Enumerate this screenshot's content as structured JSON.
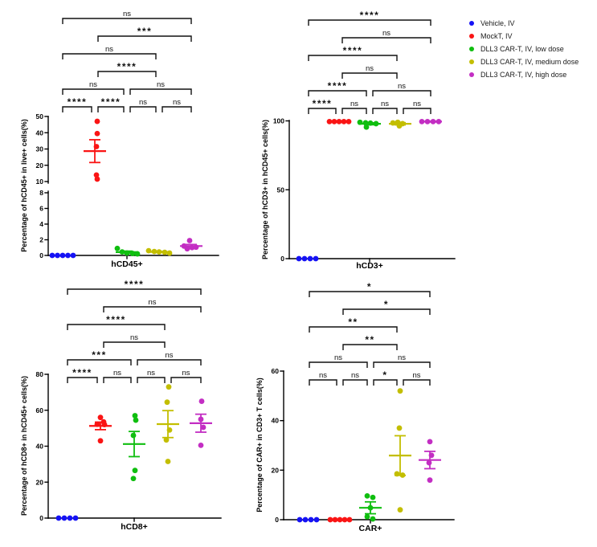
{
  "figure": {
    "background": "#ffffff",
    "legend_position": "top-right-outside"
  },
  "legend": {
    "items": [
      {
        "label": "Vehicle, IV",
        "color": "#1512F5"
      },
      {
        "label": "MockT, IV",
        "color": "#FA1414"
      },
      {
        "label": "DLL3 CAR-T, IV, low dose",
        "color": "#0FBE0F"
      },
      {
        "label": "DLL3 CAR-T, IV, medium dose",
        "color": "#C3BE00"
      },
      {
        "label": "DLL3 CAR-T, IV, high dose",
        "color": "#C32EC3"
      }
    ]
  },
  "chart_data": [
    {
      "id": "hCD45",
      "type": "scatter",
      "ylabel": "Percentage of hCD45+ in live+ cells(%)",
      "category": "hCD45+",
      "y_axis": {
        "broken": true,
        "segments": [
          {
            "range": [
              0,
              8
            ],
            "ticks": [
              0,
              2,
              4,
              6,
              8
            ]
          },
          {
            "range": [
              10,
              50
            ],
            "ticks": [
              10,
              20,
              30,
              40,
              50
            ]
          }
        ]
      },
      "series": [
        {
          "name": "Vehicle, IV",
          "values": [
            0,
            0,
            0,
            0,
            0
          ],
          "jitter": [
            -13,
            -6.5,
            0,
            6.5,
            13
          ],
          "mean": null,
          "sem_low": null,
          "sem_high": null
        },
        {
          "name": "MockT, IV",
          "values": [
            47,
            39.5,
            31.5,
            14,
            11.5
          ],
          "jitter": [
            3,
            3,
            2,
            2,
            3
          ],
          "mean": 28.7,
          "sem_low": 21.7,
          "sem_high": 35.7
        },
        {
          "name": "DLL3 CAR-T, IV, low dose",
          "values": [
            0.9,
            0.45,
            0.3,
            0.25,
            0.2
          ],
          "jitter": [
            -12,
            -6,
            0,
            7,
            13
          ],
          "mean": 0.42,
          "sem_low": 0.29,
          "sem_high": 0.55
        },
        {
          "name": "DLL3 CAR-T, IV, medium dose",
          "values": [
            0.6,
            0.5,
            0.45,
            0.4,
            0.3
          ],
          "jitter": [
            -13,
            -6,
            0,
            7,
            13
          ],
          "mean": 0.45,
          "sem_low": 0.38,
          "sem_high": 0.52
        },
        {
          "name": "DLL3 CAR-T, IV, high dose",
          "values": [
            1.9,
            1.2,
            1.05,
            1.0,
            0.85
          ],
          "jitter": [
            -2,
            -9,
            6,
            1,
            -5
          ],
          "mean": 1.2,
          "sem_low": 1.0,
          "sem_high": 1.4
        }
      ],
      "significance": [
        {
          "row": 1,
          "from": 1,
          "to": 2,
          "label": "****"
        },
        {
          "row": 1,
          "from": 2,
          "to": 3,
          "label": "****"
        },
        {
          "row": 1,
          "from": 3,
          "to": 4,
          "label": "ns"
        },
        {
          "row": 1,
          "from": 4,
          "to": 5,
          "label": "ns"
        },
        {
          "row": 2,
          "from": 1,
          "to": 3,
          "label": "ns"
        },
        {
          "row": 2,
          "from": 3,
          "to": 5,
          "label": "ns"
        },
        {
          "row": 3,
          "from": 2,
          "to": 4,
          "label": "****"
        },
        {
          "row": 4,
          "from": 1,
          "to": 4,
          "label": "ns"
        },
        {
          "row": 5,
          "from": 2,
          "to": 5,
          "label": "***"
        },
        {
          "row": 6,
          "from": 1,
          "to": 5,
          "label": "ns"
        }
      ]
    },
    {
      "id": "hCD3",
      "type": "scatter",
      "ylabel": "Percentage of hCD3+ in hCD45+ cells(%)",
      "category": "hCD3+",
      "y_axis": {
        "broken": false,
        "segments": [
          {
            "range": [
              0,
              100
            ],
            "ticks": [
              0,
              50,
              100
            ]
          }
        ]
      },
      "series": [
        {
          "name": "Vehicle, IV",
          "values": [
            0,
            0,
            0,
            0
          ],
          "jitter": [
            -12,
            -5,
            2,
            9
          ],
          "mean": null,
          "sem_low": null,
          "sem_high": null
        },
        {
          "name": "MockT, IV",
          "values": [
            99.5,
            99.5,
            99.5,
            99.5,
            99.5
          ],
          "jitter": [
            -12,
            -6,
            0,
            6,
            12
          ],
          "mean": 99.5,
          "sem_low": 99.1,
          "sem_high": 99.9
        },
        {
          "name": "DLL3 CAR-T, IV, low dose",
          "values": [
            99,
            98.6,
            98.4,
            98,
            95.5
          ],
          "jitter": [
            -12,
            -5,
            1,
            8,
            -4
          ],
          "mean": 97.9,
          "sem_low": 97.2,
          "sem_high": 98.6
        },
        {
          "name": "DLL3 CAR-T, IV, medium dose",
          "values": [
            99,
            98.5,
            98,
            97.6,
            96.4
          ],
          "jitter": [
            -3,
            -9,
            3,
            0,
            -1
          ],
          "mean": 97.9,
          "sem_low": 97.1,
          "sem_high": 98.7
        },
        {
          "name": "DLL3 CAR-T, IV, high dose",
          "values": [
            99.5,
            99.5,
            99.5,
            99.5
          ],
          "jitter": [
            -11,
            -4,
            3,
            10
          ],
          "mean": 99.5,
          "sem_low": 99.2,
          "sem_high": 99.8
        }
      ],
      "significance": [
        {
          "row": 1,
          "from": 1,
          "to": 2,
          "label": "****"
        },
        {
          "row": 1,
          "from": 2,
          "to": 3,
          "label": "ns"
        },
        {
          "row": 1,
          "from": 3,
          "to": 4,
          "label": "ns"
        },
        {
          "row": 1,
          "from": 4,
          "to": 5,
          "label": "ns"
        },
        {
          "row": 2,
          "from": 1,
          "to": 3,
          "label": "****"
        },
        {
          "row": 2,
          "from": 3,
          "to": 5,
          "label": "ns"
        },
        {
          "row": 3,
          "from": 2,
          "to": 4,
          "label": "ns"
        },
        {
          "row": 4,
          "from": 1,
          "to": 4,
          "label": "****"
        },
        {
          "row": 5,
          "from": 2,
          "to": 5,
          "label": "ns"
        },
        {
          "row": 6,
          "from": 1,
          "to": 5,
          "label": "****"
        }
      ]
    },
    {
      "id": "hCD8",
      "type": "scatter",
      "ylabel": "Percentage of hCD8+ in hCD45+ cells(%)",
      "category": "hCD8+",
      "y_axis": {
        "broken": false,
        "segments": [
          {
            "range": [
              0,
              80
            ],
            "ticks": [
              0,
              20,
              40,
              60,
              80
            ]
          }
        ]
      },
      "series": [
        {
          "name": "Vehicle, IV",
          "values": [
            0,
            0,
            0,
            0
          ],
          "jitter": [
            -11,
            -4,
            3,
            10
          ],
          "mean": null,
          "sem_low": null,
          "sem_high": null
        },
        {
          "name": "MockT, IV",
          "values": [
            56,
            53.5,
            52.2,
            52,
            43
          ],
          "jitter": [
            0,
            4,
            -4,
            5,
            0
          ],
          "mean": 51.3,
          "sem_low": 49.2,
          "sem_high": 53.4
        },
        {
          "name": "DLL3 CAR-T, IV, low dose",
          "values": [
            57,
            54.5,
            46,
            26.5,
            22
          ],
          "jitter": [
            1,
            2,
            -1,
            1,
            -1
          ],
          "mean": 41.2,
          "sem_low": 34.2,
          "sem_high": 48.2
        },
        {
          "name": "DLL3 CAR-T, IV, medium dose",
          "values": [
            73,
            64.5,
            49,
            43.5,
            31.5
          ],
          "jitter": [
            1,
            -1,
            2,
            -2,
            0
          ],
          "mean": 52.3,
          "sem_low": 44.8,
          "sem_high": 59.8
        },
        {
          "name": "DLL3 CAR-T, IV, high dose",
          "values": [
            65,
            55,
            50.5,
            40.5
          ],
          "jitter": [
            1,
            0,
            3,
            0
          ],
          "mean": 52.8,
          "sem_low": 47.8,
          "sem_high": 57.8
        }
      ],
      "significance": [
        {
          "row": 1,
          "from": 1,
          "to": 2,
          "label": "****"
        },
        {
          "row": 1,
          "from": 2,
          "to": 3,
          "label": "ns"
        },
        {
          "row": 1,
          "from": 3,
          "to": 4,
          "label": "ns"
        },
        {
          "row": 1,
          "from": 4,
          "to": 5,
          "label": "ns"
        },
        {
          "row": 2,
          "from": 1,
          "to": 3,
          "label": "***"
        },
        {
          "row": 2,
          "from": 3,
          "to": 5,
          "label": "ns"
        },
        {
          "row": 3,
          "from": 2,
          "to": 4,
          "label": "ns"
        },
        {
          "row": 4,
          "from": 1,
          "to": 4,
          "label": "****"
        },
        {
          "row": 5,
          "from": 2,
          "to": 5,
          "label": "ns"
        },
        {
          "row": 6,
          "from": 1,
          "to": 5,
          "label": "****"
        }
      ]
    },
    {
      "id": "CAR",
      "type": "scatter",
      "ylabel": "Percentage of CAR+ in CD3+ T cells(%)",
      "category": "CAR+",
      "y_axis": {
        "broken": false,
        "segments": [
          {
            "range": [
              0,
              60
            ],
            "ticks": [
              0,
              20,
              40,
              60
            ]
          }
        ]
      },
      "series": [
        {
          "name": "Vehicle, IV",
          "values": [
            0,
            0,
            0,
            0
          ],
          "jitter": [
            -12,
            -5,
            2,
            9
          ],
          "mean": null,
          "sem_low": null,
          "sem_high": null
        },
        {
          "name": "MockT, IV",
          "values": [
            0,
            0,
            0,
            0,
            0
          ],
          "jitter": [
            -12,
            -6,
            0,
            6,
            12
          ],
          "mean": null,
          "sem_low": null,
          "sem_high": null
        },
        {
          "name": "DLL3 CAR-T, IV, low dose",
          "values": [
            9.6,
            9.0,
            4.8,
            1.2,
            0.3
          ],
          "jitter": [
            -4,
            3,
            0,
            -4,
            3
          ],
          "mean": 4.8,
          "sem_low": 2.4,
          "sem_high": 7.2
        },
        {
          "name": "DLL3 CAR-T, IV, medium dose",
          "values": [
            52,
            37,
            18.5,
            18,
            4
          ],
          "jitter": [
            0,
            -1,
            -4,
            3,
            0
          ],
          "mean": 25.9,
          "sem_low": 17.9,
          "sem_high": 33.9
        },
        {
          "name": "DLL3 CAR-T, IV, high dose",
          "values": [
            31.5,
            26,
            23,
            16
          ],
          "jitter": [
            0,
            2,
            -1,
            0
          ],
          "mean": 24.1,
          "sem_low": 20.6,
          "sem_high": 27.6
        }
      ],
      "significance": [
        {
          "row": 1,
          "from": 1,
          "to": 2,
          "label": "ns"
        },
        {
          "row": 1,
          "from": 2,
          "to": 3,
          "label": "ns"
        },
        {
          "row": 1,
          "from": 3,
          "to": 4,
          "label": "*"
        },
        {
          "row": 1,
          "from": 4,
          "to": 5,
          "label": "ns"
        },
        {
          "row": 2,
          "from": 1,
          "to": 3,
          "label": "ns"
        },
        {
          "row": 2,
          "from": 3,
          "to": 5,
          "label": "ns"
        },
        {
          "row": 3,
          "from": 2,
          "to": 4,
          "label": "**"
        },
        {
          "row": 4,
          "from": 1,
          "to": 4,
          "label": "**"
        },
        {
          "row": 5,
          "from": 2,
          "to": 5,
          "label": "*"
        },
        {
          "row": 6,
          "from": 1,
          "to": 5,
          "label": "*"
        }
      ]
    }
  ]
}
